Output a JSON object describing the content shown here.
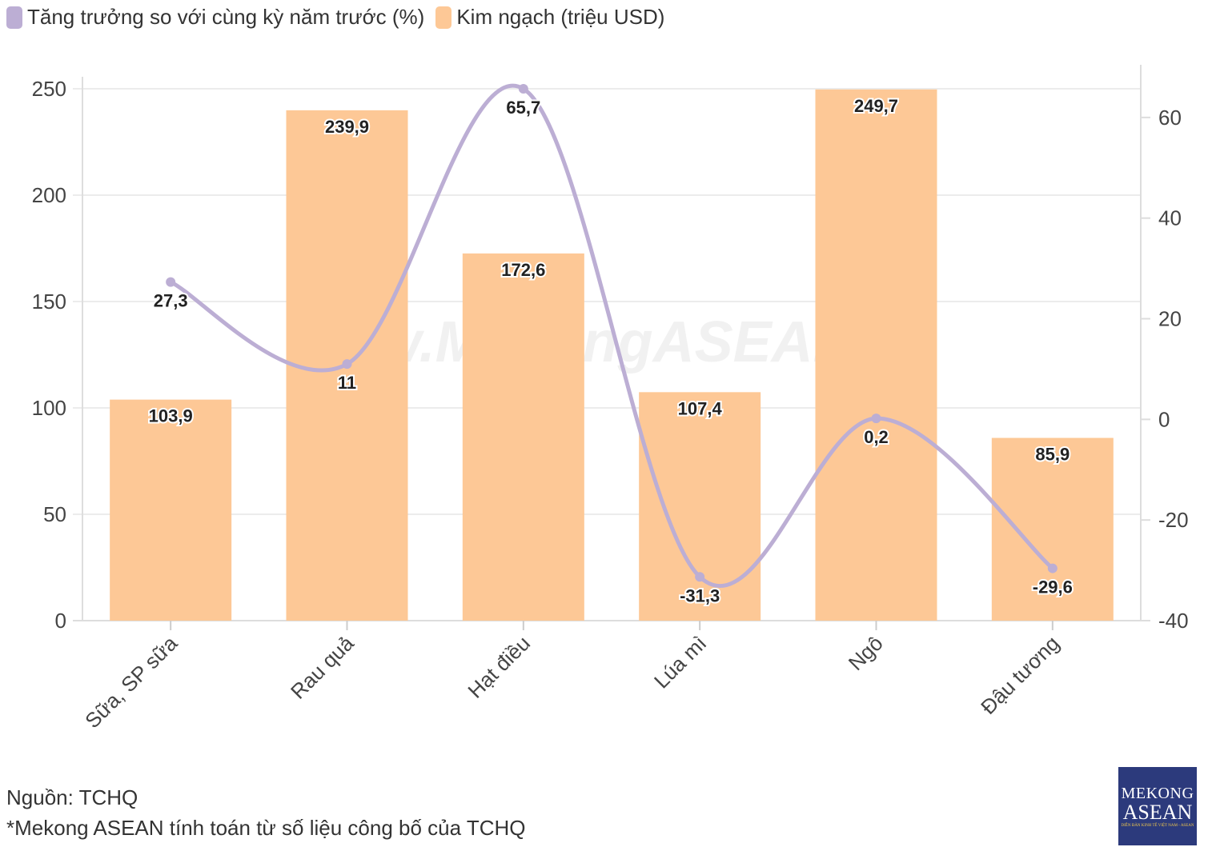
{
  "chart_data": {
    "type": "bar+line",
    "categories": [
      "Sữa, SP sữa",
      "Rau quả",
      "Hạt điều",
      "Lúa mì",
      "Ngô",
      "Đậu tương"
    ],
    "series": [
      {
        "name": "Tăng trưởng so với cùng kỳ năm trước (%)",
        "type": "line",
        "axis": "right",
        "color": "#bcaed4",
        "values": [
          27.3,
          11,
          65.7,
          -31.3,
          0.2,
          -29.6
        ],
        "labels": [
          "27,3",
          "11",
          "65,7",
          "-31,3",
          "0,2",
          "-29,6"
        ]
      },
      {
        "name": "Kim ngạch (triệu USD)",
        "type": "bar",
        "axis": "left",
        "color": "#fdc896",
        "values": [
          103.9,
          239.9,
          172.6,
          107.4,
          249.7,
          85.9
        ],
        "labels": [
          "103,9",
          "239,9",
          "172,6",
          "107,4",
          "249,7",
          "85,9"
        ]
      }
    ],
    "y_left": {
      "range": [
        0,
        250
      ],
      "ticks": [
        0,
        50,
        100,
        150,
        200,
        250
      ]
    },
    "y_right": {
      "range": [
        -40,
        65.7
      ],
      "ticks": [
        -40,
        -20,
        0,
        20,
        40,
        60
      ]
    },
    "grid": true,
    "legend": "top-left"
  },
  "watermark": "www.MekongASEAN.vn",
  "source": {
    "line1": "Nguồn: TCHQ",
    "line2": "*Mekong ASEAN tính toán từ số liệu công bố của TCHQ"
  },
  "logo": {
    "line1": "MEKONG",
    "line2": "ASEAN",
    "line3": "DIỄN ĐÀN KINH TẾ VIỆT NAM - ASEAN"
  }
}
